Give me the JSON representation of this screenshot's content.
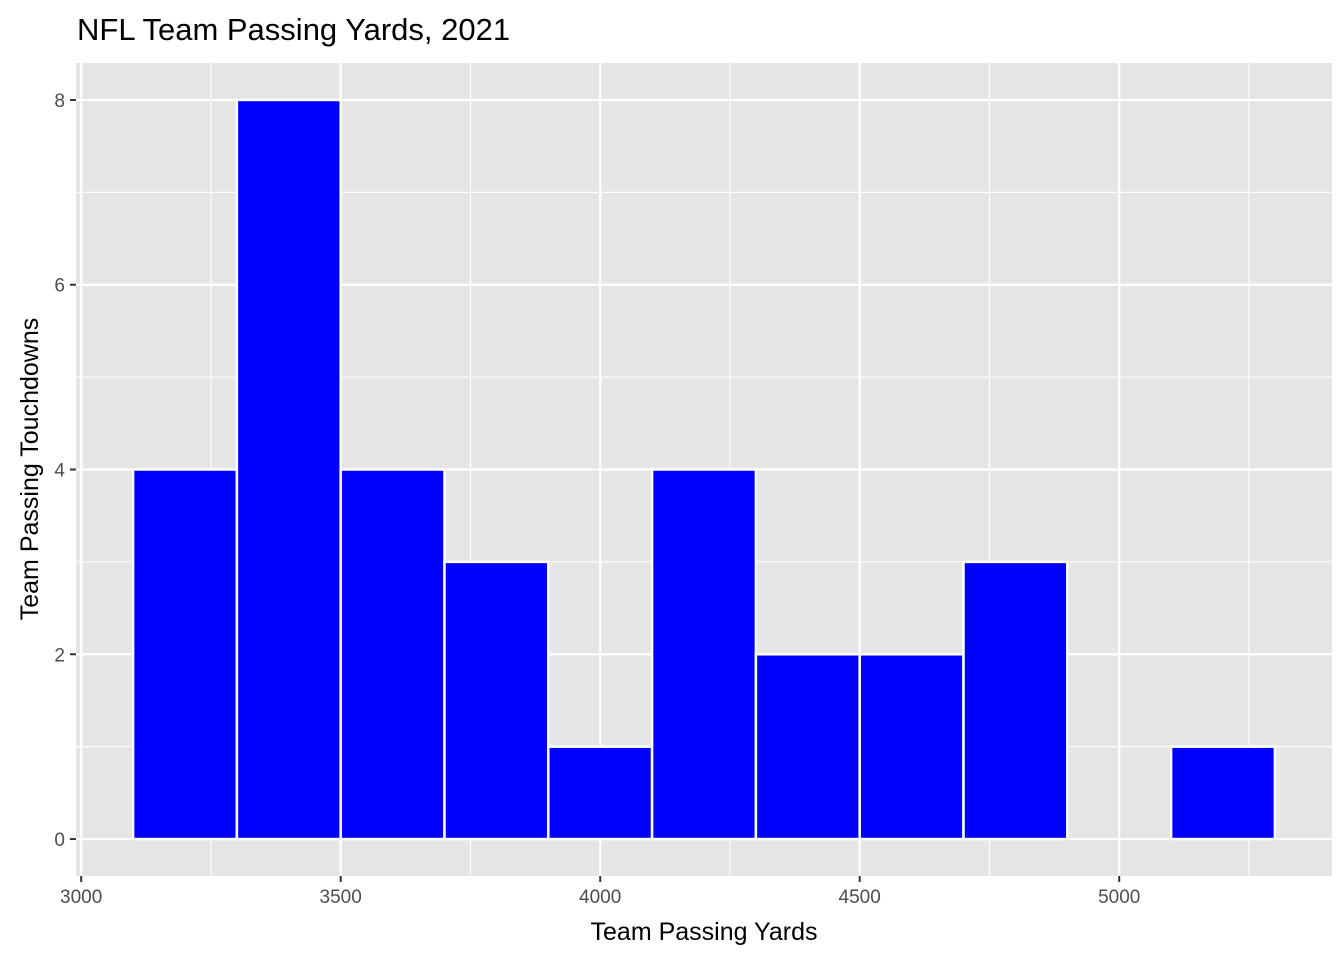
{
  "chart_data": {
    "type": "bar",
    "subtype": "histogram",
    "title": "NFL Team Passing Yards, 2021",
    "xlabel": "Team Passing Yards",
    "ylabel": "Team Passing Touchdowns",
    "bins": [
      {
        "start": 3100,
        "end": 3300,
        "count": 4
      },
      {
        "start": 3300,
        "end": 3500,
        "count": 8
      },
      {
        "start": 3500,
        "end": 3700,
        "count": 4
      },
      {
        "start": 3700,
        "end": 3900,
        "count": 3
      },
      {
        "start": 3900,
        "end": 4100,
        "count": 1
      },
      {
        "start": 4100,
        "end": 4300,
        "count": 4
      },
      {
        "start": 4300,
        "end": 4500,
        "count": 2
      },
      {
        "start": 4500,
        "end": 4700,
        "count": 2
      },
      {
        "start": 4700,
        "end": 4900,
        "count": 3
      },
      {
        "start": 4900,
        "end": 5100,
        "count": 0
      },
      {
        "start": 5100,
        "end": 5300,
        "count": 1
      }
    ],
    "xlim": [
      2990,
      5410
    ],
    "ylim": [
      -0.4,
      8.4
    ],
    "xticks": [
      3000,
      3500,
      4000,
      4500,
      5000
    ],
    "xtick_labels": [
      "3000",
      "3500",
      "4000",
      "4500",
      "5000"
    ],
    "yticks": [
      0,
      2,
      4,
      6,
      8
    ],
    "ytick_labels": [
      "0",
      "2",
      "4",
      "6",
      "8"
    ],
    "grid": true,
    "colors": {
      "fill": "#0000FF",
      "bar_outline": "#FFFFFF",
      "panel": "#E5E5E5",
      "grid": "#FFFFFF"
    }
  }
}
